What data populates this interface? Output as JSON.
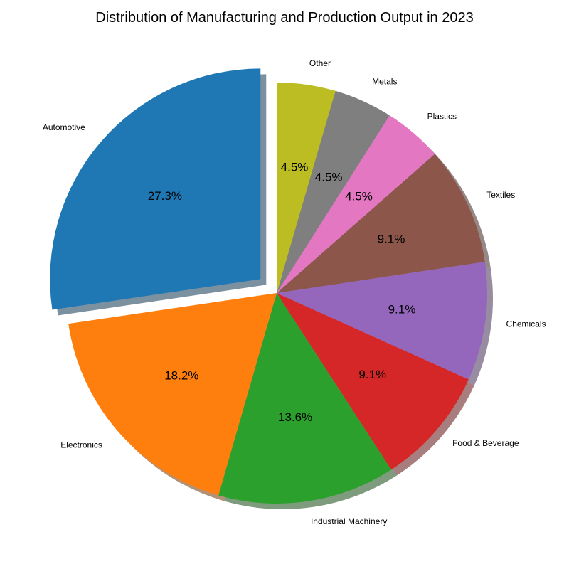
{
  "chart_data": {
    "type": "pie",
    "title": "Distribution of Manufacturing and Production Output in 2023",
    "categories": [
      "Automotive",
      "Electronics",
      "Industrial Machinery",
      "Food & Beverage",
      "Chemicals",
      "Textiles",
      "Plastics",
      "Metals",
      "Other"
    ],
    "values": [
      27.3,
      18.2,
      13.6,
      9.1,
      9.1,
      9.1,
      4.5,
      4.5,
      4.5
    ],
    "percent_labels": [
      "27.3%",
      "18.2%",
      "13.6%",
      "9.1%",
      "9.1%",
      "9.1%",
      "4.5%",
      "4.5%",
      "4.5%"
    ],
    "colors": [
      "#1f77b4",
      "#ff7f0e",
      "#2ca02c",
      "#d62728",
      "#9467bd",
      "#8c564b",
      "#e377c2",
      "#7f7f7f",
      "#bcbd22"
    ],
    "exploded": [
      "Automotive"
    ],
    "shadow": true
  }
}
